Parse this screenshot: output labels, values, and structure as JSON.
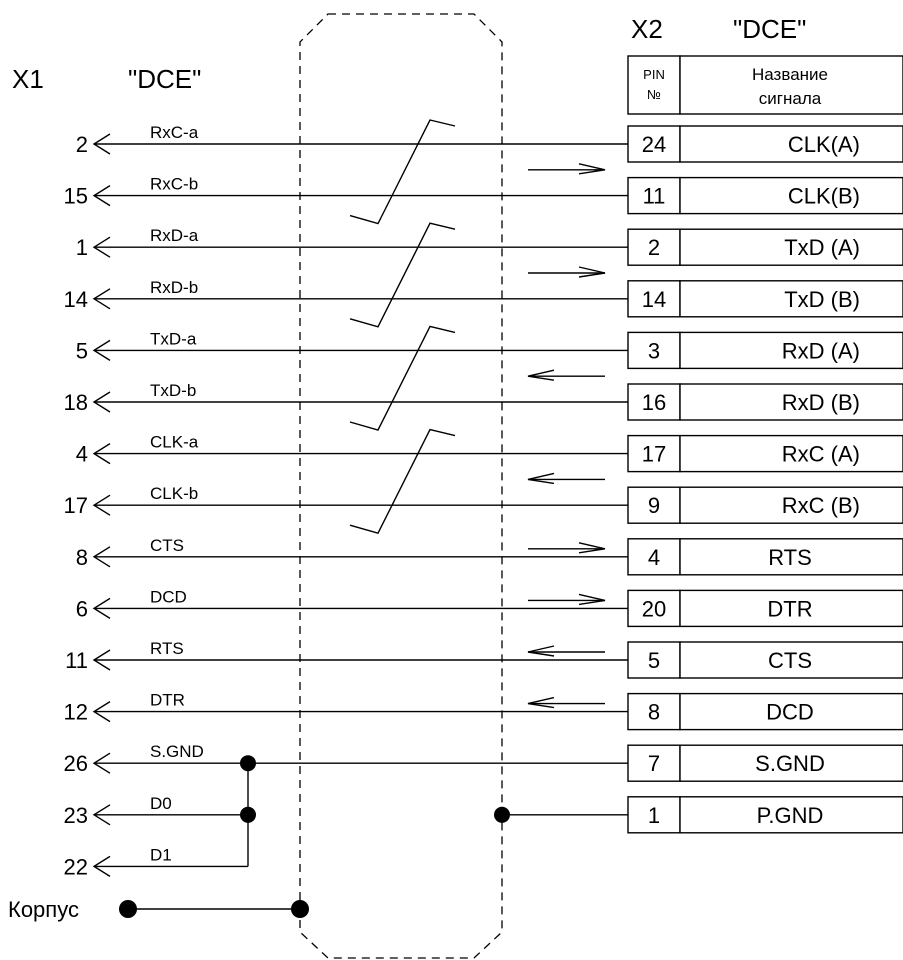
{
  "x1": {
    "designator": "X1",
    "type": "\"DCE\""
  },
  "x2": {
    "designator": "X2",
    "type": "\"DCE\"",
    "col_pin_top": "PIN",
    "col_pin_bottom": "№",
    "col_name_top": "Название",
    "col_name_bottom": "сигнала"
  },
  "rows": [
    {
      "pin1": "2",
      "sig1": "RxC-a",
      "pin2": "24",
      "name2": "CLK(A)"
    },
    {
      "pin1": "15",
      "sig1": "RxC-b",
      "pin2": "11",
      "name2": "CLK(B)"
    },
    {
      "pin1": "1",
      "sig1": "RxD-a",
      "pin2": "2",
      "name2": "TxD (A)"
    },
    {
      "pin1": "14",
      "sig1": "RxD-b",
      "pin2": "14",
      "name2": "TxD (B)"
    },
    {
      "pin1": "5",
      "sig1": "TxD-a",
      "pin2": "3",
      "name2": "RxD (A)"
    },
    {
      "pin1": "18",
      "sig1": "TxD-b",
      "pin2": "16",
      "name2": "RxD (B)"
    },
    {
      "pin1": "4",
      "sig1": "CLK-a",
      "pin2": "17",
      "name2": "RxC (A)"
    },
    {
      "pin1": "17",
      "sig1": "CLK-b",
      "pin2": "9",
      "name2": "RxC (B)"
    },
    {
      "pin1": "8",
      "sig1": "CTS",
      "pin2": "4",
      "name2": "RTS"
    },
    {
      "pin1": "6",
      "sig1": "DCD",
      "pin2": "20",
      "name2": "DTR"
    },
    {
      "pin1": "11",
      "sig1": "RTS",
      "pin2": "5",
      "name2": "CTS"
    },
    {
      "pin1": "12",
      "sig1": "DTR",
      "pin2": "8",
      "name2": "DCD"
    },
    {
      "pin1": "26",
      "sig1": "S.GND",
      "pin2": "7",
      "name2": "S.GND"
    },
    {
      "pin1": "23",
      "sig1": "D0",
      "pin2": "1",
      "name2": "P.GND"
    },
    {
      "pin1": "22",
      "sig1": "D1",
      "pin2": "",
      "name2": ""
    }
  ],
  "chassis": {
    "label": "Корпус"
  },
  "direction_arrows": [
    "right",
    "right",
    "left",
    "left",
    "right",
    "right",
    "left",
    "left"
  ]
}
